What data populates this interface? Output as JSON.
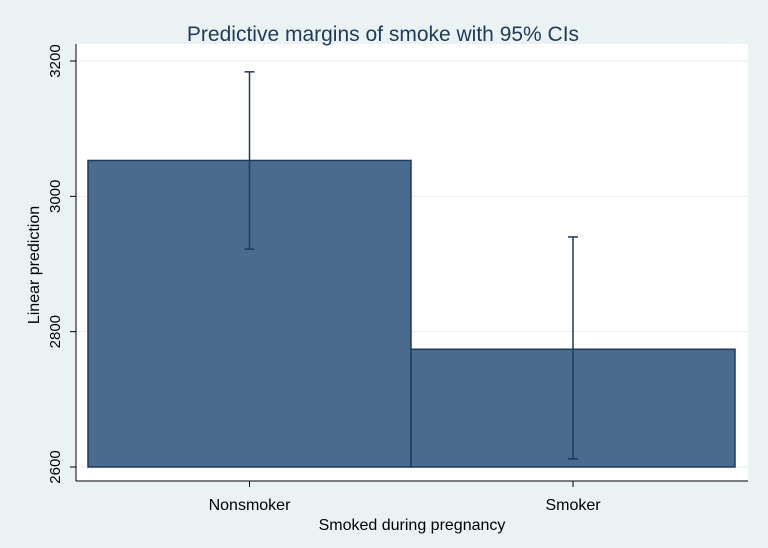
{
  "chart_data": {
    "type": "bar",
    "title": "Predictive margins of smoke with 95% CIs",
    "xlabel": "Smoked during pregnancy",
    "ylabel": "Linear prediction",
    "categories": [
      "Nonsmoker",
      "Smoker"
    ],
    "values": [
      3053,
      2774
    ],
    "ci_lower": [
      2922,
      2612
    ],
    "ci_upper": [
      3184,
      2940
    ],
    "ylim": [
      2600,
      3200
    ],
    "yticks": [
      2600,
      2800,
      3000,
      3200
    ],
    "grid": true,
    "legend": "none",
    "colors": {
      "background": "#eaf2f3",
      "plot_background": "#ffffff",
      "bar_fill": "#4a6b8d",
      "bar_edge": "#1f3a5a",
      "errorbar": "#1f3a5a",
      "grid": "#e9ecef",
      "title": "#1f3a5a",
      "axis": "#000000"
    }
  }
}
